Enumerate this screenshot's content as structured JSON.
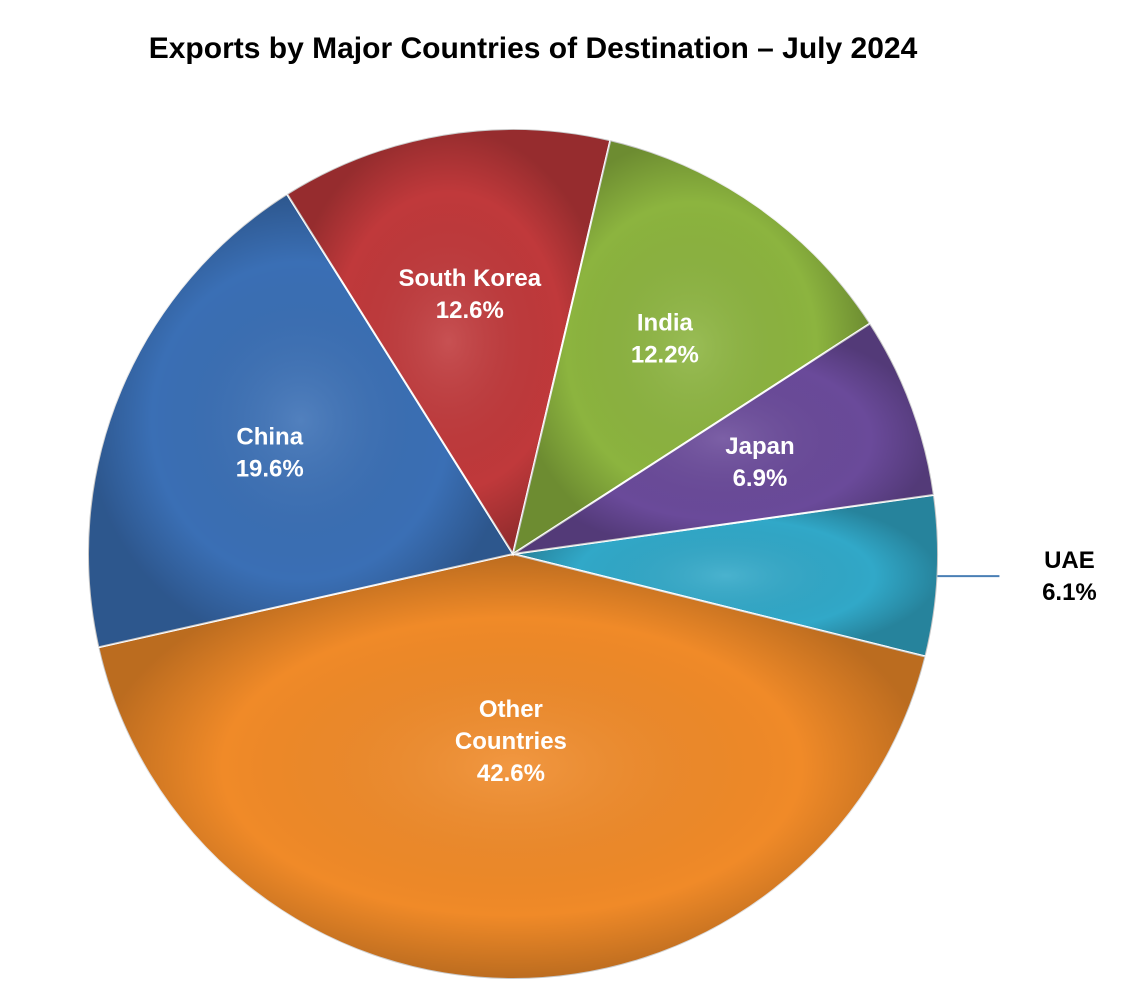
{
  "chart_data": {
    "type": "pie",
    "title": "Exports by Major Countries of Destination – July 2024",
    "slices": [
      {
        "label": "UAE",
        "label_lines": [
          "UAE"
        ],
        "value": 6.1,
        "value_text": "6.1%",
        "color": "#31a8c8",
        "label_color": "#000000",
        "label_outside": true
      },
      {
        "label": "Other Countries",
        "label_lines": [
          "Other",
          "Countries"
        ],
        "value": 42.6,
        "value_text": "42.6%",
        "color": "#f08a28",
        "label_color": "#ffffff",
        "label_outside": false
      },
      {
        "label": "China",
        "label_lines": [
          "China"
        ],
        "value": 19.6,
        "value_text": "19.6%",
        "color": "#3a6fb5",
        "label_color": "#ffffff",
        "label_outside": false
      },
      {
        "label": "South Korea",
        "label_lines": [
          "South Korea"
        ],
        "value": 12.6,
        "value_text": "12.6%",
        "color": "#c0393b",
        "label_color": "#ffffff",
        "label_outside": false
      },
      {
        "label": "India",
        "label_lines": [
          "India"
        ],
        "value": 12.2,
        "value_text": "12.2%",
        "color": "#8cb43f",
        "label_color": "#ffffff",
        "label_outside": false
      },
      {
        "label": "Japan",
        "label_lines": [
          "Japan"
        ],
        "value": 6.9,
        "value_text": "6.9%",
        "color": "#6a4a9a",
        "label_color": "#ffffff",
        "label_outside": false
      }
    ]
  }
}
